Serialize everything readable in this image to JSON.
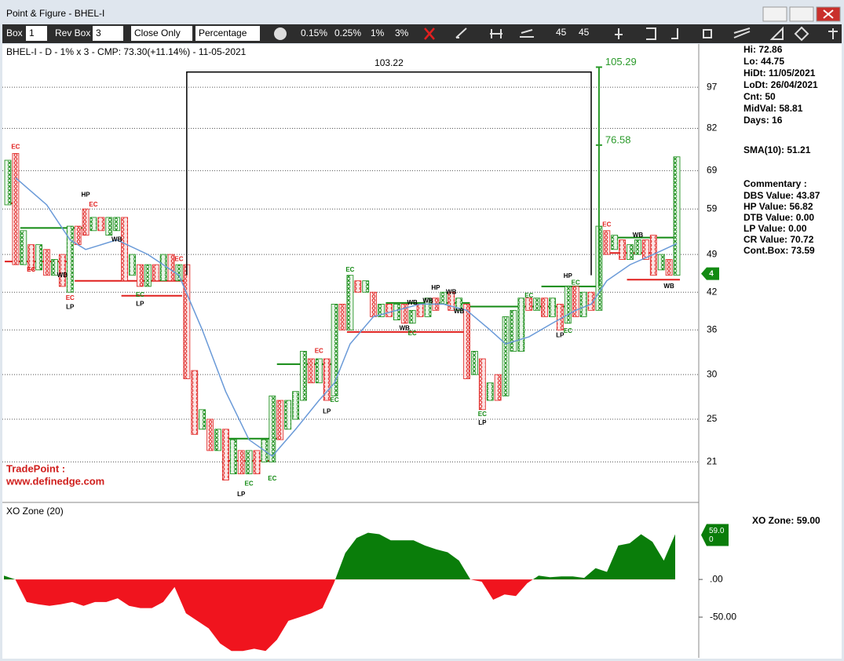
{
  "window": {
    "title": "Point & Figure - BHEL-I"
  },
  "toolbar": {
    "box_label": "Box",
    "box_value": "1",
    "rev_label": "Rev Box",
    "rev_value": "3",
    "price": "Close Only",
    "method": "Percentage",
    "presets": [
      "0.15%",
      "0.25%",
      "1%",
      "3%"
    ],
    "icons": [
      "45",
      "45"
    ]
  },
  "chart_data": [
    {
      "type": "point_figure",
      "title": "BHEL-I - D - 1% x 3 - CMP: 73.30(+11.14%) - 11-05-2021",
      "log": true,
      "grid": true,
      "ylim": [
        17.8,
        115
      ],
      "yticks": [
        97,
        82,
        69,
        59,
        49,
        42,
        36,
        30,
        25,
        21
      ],
      "colors": {
        "X": "#138a13",
        "O": "#e0201e",
        "sma": "#6a9ad8",
        "box": "#000000",
        "target": "#2a9a2a",
        "red": "#e0201e",
        "green": "#138a13"
      },
      "columns": [
        {
          "kind": "X",
          "low": 60,
          "high": 72
        },
        {
          "kind": "O",
          "low": 47,
          "high": 74
        },
        {
          "kind": "X",
          "low": 47,
          "high": 54
        },
        {
          "kind": "O",
          "low": 46,
          "high": 51
        },
        {
          "kind": "X",
          "low": 46,
          "high": 51
        },
        {
          "kind": "O",
          "low": 45,
          "high": 50
        },
        {
          "kind": "X",
          "low": 45,
          "high": 48
        },
        {
          "kind": "O",
          "low": 43,
          "high": 49
        },
        {
          "kind": "X",
          "low": 42,
          "high": 55
        },
        {
          "kind": "O",
          "low": 51,
          "high": 55
        },
        {
          "kind": "O",
          "low": 53,
          "high": 59
        },
        {
          "kind": "X",
          "low": 54,
          "high": 57
        },
        {
          "kind": "O",
          "low": 54,
          "high": 57
        },
        {
          "kind": "X",
          "low": 53,
          "high": 57
        },
        {
          "kind": "X",
          "low": 54,
          "high": 57
        },
        {
          "kind": "O",
          "low": 44,
          "high": 57
        },
        {
          "kind": "X",
          "low": 45,
          "high": 49
        },
        {
          "kind": "O",
          "low": 43,
          "high": 47
        },
        {
          "kind": "X",
          "low": 43,
          "high": 47
        },
        {
          "kind": "O",
          "low": 44,
          "high": 47
        },
        {
          "kind": "X",
          "low": 44,
          "high": 49
        },
        {
          "kind": "O",
          "low": 44,
          "high": 49
        },
        {
          "kind": "X",
          "low": 44,
          "high": 47
        },
        {
          "kind": "O",
          "low": 29.5,
          "high": 47
        },
        {
          "kind": "O",
          "low": 23.5,
          "high": 30.5
        },
        {
          "kind": "X",
          "low": 24,
          "high": 26
        },
        {
          "kind": "O",
          "low": 22,
          "high": 25
        },
        {
          "kind": "X",
          "low": 22,
          "high": 24
        },
        {
          "kind": "O",
          "low": 19.5,
          "high": 24
        },
        {
          "kind": "X",
          "low": 20,
          "high": 23
        },
        {
          "kind": "O",
          "low": 20,
          "high": 22
        },
        {
          "kind": "X",
          "low": 20,
          "high": 22
        },
        {
          "kind": "O",
          "low": 20,
          "high": 22
        },
        {
          "kind": "X",
          "low": 21,
          "high": 23
        },
        {
          "kind": "X",
          "low": 21,
          "high": 27.5
        },
        {
          "kind": "O",
          "low": 23,
          "high": 27
        },
        {
          "kind": "X",
          "low": 24,
          "high": 27
        },
        {
          "kind": "X",
          "low": 25,
          "high": 28
        },
        {
          "kind": "X",
          "low": 27,
          "high": 33
        },
        {
          "kind": "O",
          "low": 29,
          "high": 32
        },
        {
          "kind": "X",
          "low": 29,
          "high": 32
        },
        {
          "kind": "O",
          "low": 27,
          "high": 32
        },
        {
          "kind": "X",
          "low": 27.5,
          "high": 40
        },
        {
          "kind": "O",
          "low": 36,
          "high": 40
        },
        {
          "kind": "X",
          "low": 36,
          "high": 45
        },
        {
          "kind": "O",
          "low": 42,
          "high": 44
        },
        {
          "kind": "X",
          "low": 42,
          "high": 44
        },
        {
          "kind": "O",
          "low": 38,
          "high": 42
        },
        {
          "kind": "X",
          "low": 38,
          "high": 40
        },
        {
          "kind": "O",
          "low": 38,
          "high": 40
        },
        {
          "kind": "X",
          "low": 37.5,
          "high": 40
        },
        {
          "kind": "O",
          "low": 37,
          "high": 40
        },
        {
          "kind": "X",
          "low": 37,
          "high": 39
        },
        {
          "kind": "O",
          "low": 38,
          "high": 40
        },
        {
          "kind": "X",
          "low": 38,
          "high": 41
        },
        {
          "kind": "O",
          "low": 39,
          "high": 41
        },
        {
          "kind": "X",
          "low": 40,
          "high": 42
        },
        {
          "kind": "O",
          "low": 39,
          "high": 42
        },
        {
          "kind": "X",
          "low": 39,
          "high": 41
        },
        {
          "kind": "O",
          "low": 29.5,
          "high": 40
        },
        {
          "kind": "X",
          "low": 30,
          "high": 33
        },
        {
          "kind": "O",
          "low": 26,
          "high": 32
        },
        {
          "kind": "X",
          "low": 27,
          "high": 29
        },
        {
          "kind": "O",
          "low": 27,
          "high": 30
        },
        {
          "kind": "X",
          "low": 27.5,
          "high": 38
        },
        {
          "kind": "X",
          "low": 33,
          "high": 39
        },
        {
          "kind": "X",
          "low": 33,
          "high": 41
        },
        {
          "kind": "O",
          "low": 39,
          "high": 41
        },
        {
          "kind": "X",
          "low": 39,
          "high": 41
        },
        {
          "kind": "O",
          "low": 38,
          "high": 41
        },
        {
          "kind": "X",
          "low": 38,
          "high": 41
        },
        {
          "kind": "O",
          "low": 36,
          "high": 40
        },
        {
          "kind": "X",
          "low": 37,
          "high": 43
        },
        {
          "kind": "O",
          "low": 38,
          "high": 43
        },
        {
          "kind": "X",
          "low": 38,
          "high": 42
        },
        {
          "kind": "O",
          "low": 39,
          "high": 42
        },
        {
          "kind": "X",
          "low": 39,
          "high": 55
        },
        {
          "kind": "O",
          "low": 49,
          "high": 54
        },
        {
          "kind": "X",
          "low": 50,
          "high": 53
        },
        {
          "kind": "O",
          "low": 48,
          "high": 52
        },
        {
          "kind": "X",
          "low": 48,
          "high": 51
        },
        {
          "kind": "X",
          "low": 49,
          "high": 52
        },
        {
          "kind": "O",
          "low": 48,
          "high": 52
        },
        {
          "kind": "O",
          "low": 45,
          "high": 53
        },
        {
          "kind": "X",
          "low": 46,
          "high": 49
        },
        {
          "kind": "O",
          "low": 45,
          "high": 48
        },
        {
          "kind": "X",
          "low": 45,
          "high": 73
        }
      ],
      "sma": {
        "columns": [
          1,
          5,
          8,
          10,
          14,
          18,
          22,
          25,
          28,
          31,
          34,
          37,
          40,
          42,
          44,
          47,
          50,
          53,
          56,
          59,
          62,
          64,
          67,
          70,
          73,
          75,
          77,
          80,
          83,
          86
        ],
        "values": [
          67,
          60,
          52,
          50,
          52,
          49,
          45,
          36,
          28,
          23,
          21.5,
          24,
          27,
          29,
          34,
          38,
          39,
          40,
          40,
          39,
          36,
          34,
          35,
          37,
          39,
          40,
          44,
          47,
          49,
          51.21
        ]
      },
      "levels": [
        {
          "price": 47.6,
          "from": 0,
          "to": 8,
          "color": "red"
        },
        {
          "price": 54.6,
          "from": 2,
          "to": 10,
          "color": "green"
        },
        {
          "price": 60.4,
          "from": 0,
          "to": 1,
          "color": "red"
        },
        {
          "price": 44,
          "from": 9,
          "to": 23,
          "color": "red"
        },
        {
          "price": 41.4,
          "from": 15,
          "to": 22,
          "color": "red"
        },
        {
          "price": 23.1,
          "from": 28,
          "to": 35,
          "color": "green"
        },
        {
          "price": 21.1,
          "from": 28,
          "to": 34,
          "color": "red"
        },
        {
          "price": 31.3,
          "from": 35,
          "to": 42,
          "color": "green"
        },
        {
          "price": 35.7,
          "from": 44,
          "to": 59,
          "color": "red"
        },
        {
          "price": 40.2,
          "from": 49,
          "to": 59,
          "color": "green"
        },
        {
          "price": 39.6,
          "from": 59,
          "to": 72,
          "color": "green"
        },
        {
          "price": 43,
          "from": 69,
          "to": 76,
          "color": "green"
        },
        {
          "price": 52.5,
          "from": 78,
          "to": 86,
          "color": "green"
        },
        {
          "price": 49.3,
          "from": 77,
          "to": 83,
          "color": "red"
        },
        {
          "price": 44.2,
          "from": 80,
          "to": 86,
          "color": "red"
        }
      ],
      "annotations": [
        {
          "text": "EC",
          "column": 1,
          "price": 76
        },
        {
          "text": "HP",
          "column": 10,
          "price": 62.5
        },
        {
          "text": "EC",
          "column": 11,
          "price": 60
        },
        {
          "text": "WB",
          "column": 14,
          "price": 52
        },
        {
          "text": "EC",
          "column": 3,
          "price": 46
        },
        {
          "text": "WB",
          "column": 7,
          "price": 45
        },
        {
          "text": "EC",
          "column": 8,
          "price": 41
        },
        {
          "text": "LP",
          "column": 8,
          "price": 39.5
        },
        {
          "text": "EC",
          "column": 22,
          "price": 48
        },
        {
          "text": "EC",
          "column": 17,
          "price": 41.5
        },
        {
          "text": "LP",
          "column": 17,
          "price": 40
        },
        {
          "text": "EC",
          "column": 31,
          "price": 19.2
        },
        {
          "text": "LP",
          "column": 30,
          "price": 18.4
        },
        {
          "text": "EC",
          "column": 34,
          "price": 19.6
        },
        {
          "text": "EC",
          "column": 40,
          "price": 33
        },
        {
          "text": "EC",
          "column": 42,
          "price": 27
        },
        {
          "text": "LP",
          "column": 41,
          "price": 25.8
        },
        {
          "text": "EC",
          "column": 44,
          "price": 46
        },
        {
          "text": "WB",
          "column": 52,
          "price": 40.2
        },
        {
          "text": "WB",
          "column": 54,
          "price": 40.5
        },
        {
          "text": "HP",
          "column": 55,
          "price": 42.7
        },
        {
          "text": "WB",
          "column": 57,
          "price": 42
        },
        {
          "text": "WB",
          "column": 51,
          "price": 36.2
        },
        {
          "text": "EC",
          "column": 52,
          "price": 35.5
        },
        {
          "text": "WB",
          "column": 58,
          "price": 38.8
        },
        {
          "text": "EC",
          "column": 61,
          "price": 25.5
        },
        {
          "text": "LP",
          "column": 61,
          "price": 24.6
        },
        {
          "text": "EC",
          "column": 67,
          "price": 41.4
        },
        {
          "text": "HP",
          "column": 72,
          "price": 44.8
        },
        {
          "text": "EC",
          "column": 73,
          "price": 43.6
        },
        {
          "text": "EC",
          "column": 77,
          "price": 55.3
        },
        {
          "text": "EC",
          "column": 72,
          "price": 35.8
        },
        {
          "text": "LP",
          "column": 71,
          "price": 35.2
        },
        {
          "text": "WB",
          "column": 81,
          "price": 53
        },
        {
          "text": "WB",
          "column": 85,
          "price": 43
        }
      ],
      "count": {
        "from": 23,
        "to": 75,
        "base": 45,
        "top": 103.22
      },
      "target": {
        "column": 76,
        "base": 43,
        "values": [
          105.29,
          76.58
        ]
      },
      "current": {
        "price": 45.3,
        "label": "4"
      },
      "watermark": [
        "TradePoint :",
        "www.definedge.com"
      ]
    },
    {
      "type": "area",
      "title": "XO Zone (20)",
      "ylim": [
        -102,
        97
      ],
      "yticks": [
        {
          "value": 0,
          "label": ".00"
        },
        {
          "value": -50,
          "label": "-50.00"
        }
      ],
      "values": [
        5,
        0,
        -30,
        -33,
        -35,
        -33,
        -30,
        -35,
        -30,
        -30,
        -25,
        -35,
        -38,
        -38,
        -30,
        -10,
        -45,
        -55,
        -65,
        -85,
        -95,
        -95,
        -92,
        -95,
        -80,
        -55,
        -50,
        -45,
        -38,
        -5,
        35,
        55,
        62,
        60,
        52,
        52,
        52,
        45,
        40,
        36,
        25,
        0,
        -3,
        -27,
        -20,
        -22,
        -5,
        5,
        3,
        4,
        4,
        2,
        15,
        10,
        45,
        48,
        60,
        50,
        25,
        60
      ],
      "colors": {
        "up": "#0a7d0a",
        "down": "#f0141e"
      },
      "marker": {
        "value": 59,
        "label": [
          "59.0",
          "0"
        ]
      }
    }
  ],
  "info": {
    "stats": [
      {
        "label": "Hi:",
        "value": "72.86"
      },
      {
        "label": "Lo:",
        "value": "44.75"
      },
      {
        "label": "HiDt:",
        "value": "11/05/2021"
      },
      {
        "label": "LoDt:",
        "value": "26/04/2021"
      },
      {
        "label": "Cnt:",
        "value": "50"
      },
      {
        "label": "MidVal:",
        "value": "58.81"
      },
      {
        "label": "Days:",
        "value": "16"
      }
    ],
    "sma": {
      "label": "SMA(10):",
      "value": "51.21"
    },
    "commentary_title": "Commentary :",
    "commentary": [
      {
        "label": "DBS Value:",
        "value": "43.87"
      },
      {
        "label": "HP Value:",
        "value": "56.82"
      },
      {
        "label": "DTB Value:",
        "value": "0.00"
      },
      {
        "label": "LP Value:",
        "value": "0.00"
      },
      {
        "label": "CR Value:",
        "value": "70.72"
      },
      {
        "label": "Cont.Box:",
        "value": "73.59"
      }
    ],
    "xo_zone": {
      "label": "XO Zone:",
      "value": "59.00"
    }
  }
}
